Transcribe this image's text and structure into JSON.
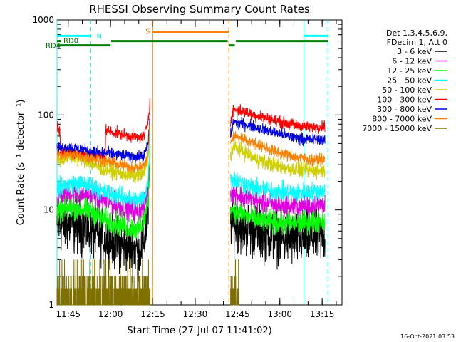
{
  "chart_data": {
    "type": "line",
    "title": "RHESSI Observing Summary Count Rates",
    "xlabel": "Start Time (27-Jul-07 11:41:02)",
    "ylabel": "Count Rate (s⁻¹ detector⁻¹)",
    "y_scale": "log",
    "ylim": [
      1,
      1000
    ],
    "y_ticks": [
      "1",
      "10",
      "100",
      "1000"
    ],
    "x_unit": "minutes since 11:41:02",
    "xlim": [
      0,
      101
    ],
    "x_ticks": [
      {
        "t": 3.97,
        "label": "11:45"
      },
      {
        "t": 18.97,
        "label": "12:00"
      },
      {
        "t": 33.97,
        "label": "12:15"
      },
      {
        "t": 48.97,
        "label": "12:30"
      },
      {
        "t": 63.97,
        "label": "12:45"
      },
      {
        "t": 78.97,
        "label": "13:00"
      },
      {
        "t": 93.97,
        "label": "13:15"
      }
    ],
    "legend_header": [
      "Det 1,3,4,5,6,9,",
      "FDecim 1, Att 0"
    ],
    "legend_position": "right",
    "series": [
      {
        "name": "3 - 6 keV",
        "color": "#000000",
        "segA": [
          [
            0,
            6.5
          ],
          [
            2,
            7
          ],
          [
            6,
            6.8
          ],
          [
            10,
            6.4
          ],
          [
            13,
            5.8
          ],
          [
            16,
            5.2
          ],
          [
            19,
            4.8
          ],
          [
            22,
            4.4
          ],
          [
            26,
            4.0
          ],
          [
            29,
            3.8
          ],
          [
            31,
            5
          ],
          [
            32.3,
            10
          ],
          [
            33,
            30
          ]
        ],
        "segB": [
          [
            61.5,
            8
          ],
          [
            62.5,
            7.2
          ],
          [
            66,
            6.5
          ],
          [
            70,
            6
          ],
          [
            75,
            5.4
          ],
          [
            80,
            5
          ],
          [
            85,
            4.9
          ],
          [
            90,
            5.2
          ],
          [
            95,
            5.3
          ]
        ],
        "noise": 0.14
      },
      {
        "name": "6 - 12 keV",
        "color": "#e000e0",
        "segA": [
          [
            0,
            13
          ],
          [
            2,
            14.5
          ],
          [
            6,
            14.8
          ],
          [
            10,
            14.5
          ],
          [
            13,
            14
          ],
          [
            16,
            12.7
          ],
          [
            19,
            12
          ],
          [
            22,
            11
          ],
          [
            26,
            10
          ],
          [
            29,
            9.5
          ],
          [
            31,
            11
          ],
          [
            32.3,
            17
          ],
          [
            33,
            50
          ]
        ],
        "segB": [
          [
            61.5,
            16
          ],
          [
            62.5,
            15
          ],
          [
            66,
            13.5
          ],
          [
            70,
            12.5
          ],
          [
            75,
            11.5
          ],
          [
            80,
            11
          ],
          [
            85,
            10.8
          ],
          [
            90,
            11
          ],
          [
            95,
            11.5
          ]
        ],
        "noise": 0.06
      },
      {
        "name": "12 - 25 keV",
        "color": "#00ff00",
        "segA": [
          [
            0,
            9
          ],
          [
            2,
            10
          ],
          [
            6,
            10.5
          ],
          [
            10,
            10
          ],
          [
            13,
            9.5
          ],
          [
            16,
            8
          ],
          [
            19,
            7.5
          ],
          [
            22,
            7
          ],
          [
            26,
            6.5
          ],
          [
            29,
            6.2
          ],
          [
            31,
            8
          ],
          [
            32.3,
            12
          ],
          [
            33,
            40
          ]
        ],
        "segB": [
          [
            61.5,
            11
          ],
          [
            62.5,
            10
          ],
          [
            66,
            9
          ],
          [
            70,
            8
          ],
          [
            75,
            7.5
          ],
          [
            80,
            7.2
          ],
          [
            85,
            7.2
          ],
          [
            90,
            7.5
          ],
          [
            95,
            7.8
          ]
        ],
        "noise": 0.06
      },
      {
        "name": "25 - 50 keV",
        "color": "#00ffff",
        "segA": [
          [
            0,
            17
          ],
          [
            2,
            18
          ],
          [
            6,
            19
          ],
          [
            10,
            18.5
          ],
          [
            13,
            17.5
          ],
          [
            16,
            15.5
          ],
          [
            19,
            15
          ],
          [
            22,
            14
          ],
          [
            26,
            13
          ],
          [
            29,
            12.5
          ],
          [
            31,
            14
          ],
          [
            32.3,
            20
          ],
          [
            33,
            60
          ]
        ],
        "segB": [
          [
            61.5,
            22
          ],
          [
            62.5,
            21
          ],
          [
            66,
            19
          ],
          [
            70,
            17
          ],
          [
            75,
            16
          ],
          [
            80,
            15.5
          ],
          [
            85,
            15
          ],
          [
            90,
            15.5
          ],
          [
            95,
            16
          ]
        ],
        "noise": 0.05
      },
      {
        "name": "50 - 100 keV",
        "color": "#d0d000",
        "segA": [
          [
            0,
            34
          ],
          [
            2,
            35
          ],
          [
            6,
            36
          ],
          [
            10,
            34
          ],
          [
            13,
            30
          ],
          [
            16,
            27
          ],
          [
            19,
            26
          ],
          [
            22,
            24.5
          ],
          [
            26,
            23
          ],
          [
            29,
            23
          ],
          [
            31,
            25
          ],
          [
            32.3,
            35
          ],
          [
            33,
            80
          ]
        ],
        "segB": [
          [
            61.5,
            38
          ],
          [
            62.5,
            46
          ],
          [
            65,
            43
          ],
          [
            70,
            35
          ],
          [
            75,
            31
          ],
          [
            80,
            28
          ],
          [
            85,
            26.5
          ],
          [
            90,
            26
          ],
          [
            95,
            26
          ]
        ],
        "noise": 0.04
      },
      {
        "name": "100 - 300 keV",
        "color": "#ff0000",
        "segA": [
          [
            0,
            75
          ],
          [
            1,
            73
          ],
          [
            1.3,
            40
          ],
          [
            3,
            41
          ],
          [
            6,
            41
          ],
          [
            10,
            39
          ],
          [
            13,
            38
          ],
          [
            16,
            36
          ],
          [
            17,
            36
          ],
          [
            17.3,
            70
          ],
          [
            19,
            67
          ],
          [
            22,
            63
          ],
          [
            26,
            60
          ],
          [
            29,
            57
          ],
          [
            31,
            60
          ],
          [
            32.3,
            90
          ],
          [
            33,
            140
          ]
        ],
        "segB": [
          [
            61.5,
            80
          ],
          [
            62.5,
            115
          ],
          [
            65,
            110
          ],
          [
            70,
            100
          ],
          [
            75,
            92
          ],
          [
            80,
            83
          ],
          [
            85,
            78
          ],
          [
            90,
            74
          ],
          [
            95,
            77
          ]
        ],
        "noise": 0.03
      },
      {
        "name": "300 - 800 keV",
        "color": "#0000e0",
        "segA": [
          [
            0,
            45
          ],
          [
            2,
            46
          ],
          [
            6,
            45
          ],
          [
            10,
            43
          ],
          [
            13,
            41
          ],
          [
            16,
            40
          ],
          [
            19,
            39
          ],
          [
            22,
            38
          ],
          [
            26,
            37
          ],
          [
            29,
            36
          ],
          [
            31,
            38
          ],
          [
            32.3,
            50
          ],
          [
            33,
            100
          ]
        ],
        "segB": [
          [
            61.5,
            60
          ],
          [
            62.5,
            85
          ],
          [
            65,
            82
          ],
          [
            70,
            75
          ],
          [
            75,
            68
          ],
          [
            80,
            62
          ],
          [
            85,
            57
          ],
          [
            90,
            55
          ],
          [
            95,
            55
          ]
        ],
        "noise": 0.03
      },
      {
        "name": "800 - 7000 keV",
        "color": "#ff8000",
        "segA": [
          [
            0,
            38
          ],
          [
            2,
            38
          ],
          [
            6,
            38
          ],
          [
            10,
            36
          ],
          [
            13,
            35
          ],
          [
            16,
            33
          ],
          [
            19,
            32
          ],
          [
            22,
            30
          ],
          [
            26,
            28.5
          ],
          [
            29,
            28
          ],
          [
            31,
            30
          ],
          [
            32.3,
            40
          ],
          [
            33,
            90
          ]
        ],
        "segB": [
          [
            61.5,
            48
          ],
          [
            62.5,
            60
          ],
          [
            65,
            58
          ],
          [
            70,
            50
          ],
          [
            75,
            44
          ],
          [
            80,
            39
          ],
          [
            85,
            36
          ],
          [
            90,
            34
          ],
          [
            95,
            34
          ]
        ],
        "noise": 0.03
      },
      {
        "name": "7000 - 15000 keV",
        "color": "#807000",
        "segA": [
          [
            0,
            1.5
          ],
          [
            33,
            1.5
          ]
        ],
        "segB": [
          [
            61.5,
            1.5
          ],
          [
            64.5,
            1.5
          ]
        ],
        "noise": 0.3,
        "style": "spiky"
      }
    ],
    "annotations": {
      "saa_text": "S",
      "saa_bar": {
        "t0": 33.9,
        "t1": 60.9,
        "y": 750
      },
      "night_text": "N",
      "night_bars": [
        {
          "t0": 0,
          "t1": 12,
          "y": 680
        },
        {
          "t0": 87.5,
          "t1": 96,
          "y": 680
        }
      ],
      "rd0_text": "RD0",
      "rd4_text": "RD4",
      "rd0_bar": {
        "t0": 0,
        "t1": 1.5,
        "y": 600
      },
      "rd4_bars": [
        {
          "t0": 0,
          "t1": 19,
          "y": 540
        },
        {
          "t0": 19.2,
          "t1": 60.5,
          "y": 600
        },
        {
          "t0": 61,
          "t1": 63,
          "y": 540
        },
        {
          "t0": 63.4,
          "t1": 96,
          "y": 600
        }
      ],
      "vlines": [
        {
          "t": 0,
          "color": "#00ffff",
          "dash": false
        },
        {
          "t": 12,
          "color": "#00ffff",
          "dash": true
        },
        {
          "t": 33.9,
          "color": "#ff8000",
          "dash": false
        },
        {
          "t": 60.9,
          "color": "#ff8000",
          "dash": true
        },
        {
          "t": 87.5,
          "color": "#00ffff",
          "dash": false
        },
        {
          "t": 96,
          "color": "#00ffff",
          "dash": true
        }
      ]
    },
    "footer_timestamp": "16-Oct-2021 03:53"
  }
}
